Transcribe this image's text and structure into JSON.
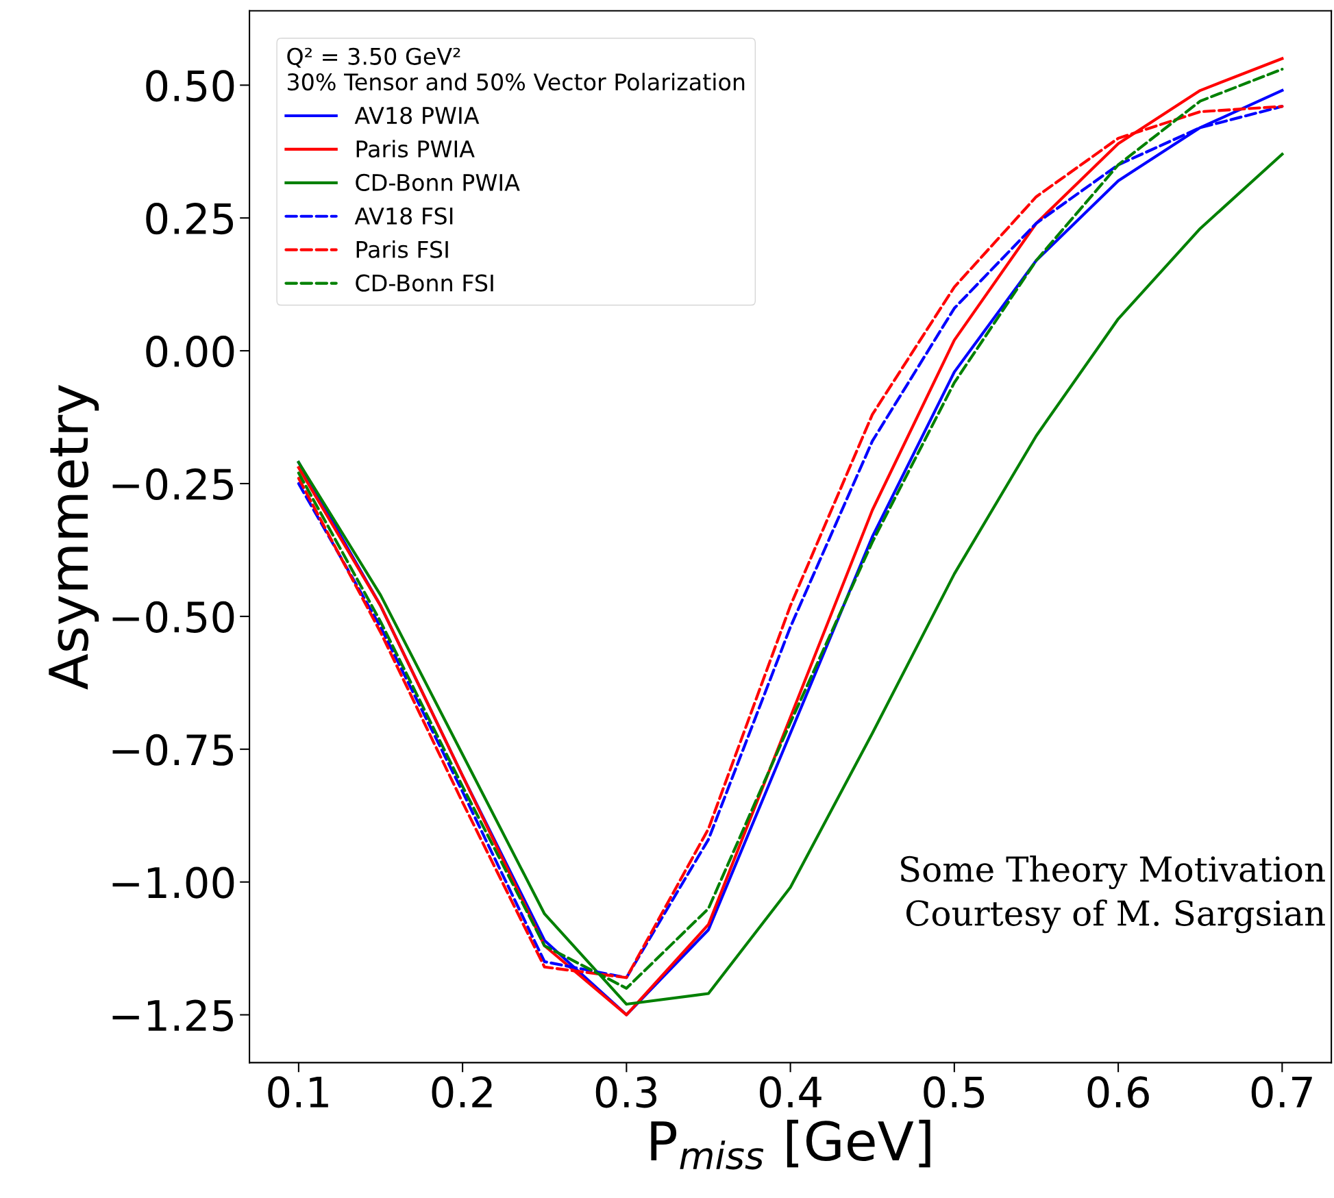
{
  "chart_data": {
    "type": "line",
    "xlabel": "P$_{miss}$ [GeV]",
    "ylabel": "Asymmetry",
    "legend_title": "Q² = 3.50 GeV²\n30% Tensor and 50% Vector Polarization",
    "x": [
      0.1,
      0.15,
      0.2,
      0.25,
      0.3,
      0.35,
      0.4,
      0.45,
      0.5,
      0.55,
      0.6,
      0.65,
      0.7
    ],
    "series": [
      {
        "name": "AV18 PWIA",
        "color": "#0000ff",
        "line_style": "solid",
        "values": [
          -0.21,
          -0.48,
          -0.8,
          -1.11,
          -1.25,
          -1.09,
          -0.72,
          -0.35,
          -0.04,
          0.17,
          0.32,
          0.42,
          0.49
        ]
      },
      {
        "name": "Paris PWIA",
        "color": "#ff0000",
        "line_style": "solid",
        "values": [
          -0.22,
          -0.48,
          -0.8,
          -1.12,
          -1.25,
          -1.08,
          -0.69,
          -0.3,
          0.02,
          0.24,
          0.39,
          0.49,
          0.55
        ]
      },
      {
        "name": "CD-Bonn PWIA",
        "color": "#008000",
        "line_style": "solid",
        "values": [
          -0.21,
          -0.46,
          -0.76,
          -1.06,
          -1.23,
          -1.21,
          -1.01,
          -0.72,
          -0.42,
          -0.16,
          0.06,
          0.23,
          0.37
        ]
      },
      {
        "name": "AV18 FSI",
        "color": "#0000ff",
        "line_style": "dashed",
        "values": [
          -0.25,
          -0.52,
          -0.83,
          -1.15,
          -1.18,
          -0.92,
          -0.52,
          -0.17,
          0.08,
          0.24,
          0.35,
          0.42,
          0.46
        ]
      },
      {
        "name": "Paris FSI",
        "color": "#ff0000",
        "line_style": "dashed",
        "values": [
          -0.24,
          -0.53,
          -0.85,
          -1.16,
          -1.18,
          -0.9,
          -0.48,
          -0.12,
          0.12,
          0.29,
          0.4,
          0.45,
          0.46
        ]
      },
      {
        "name": "CD-Bonn FSI",
        "color": "#008000",
        "line_style": "dashed",
        "values": [
          -0.23,
          -0.51,
          -0.82,
          -1.12,
          -1.2,
          -1.05,
          -0.7,
          -0.36,
          -0.06,
          0.17,
          0.35,
          0.47,
          0.53
        ]
      }
    ],
    "xlim": [
      0.07,
      0.73
    ],
    "xticks": [
      0.1,
      0.2,
      0.3,
      0.4,
      0.5,
      0.6,
      0.7
    ],
    "ylim": [
      -1.34,
      0.64
    ],
    "yticks": [
      {
        "value": -1.25,
        "label": "−1.25"
      },
      {
        "value": -1.0,
        "label": "−1.00"
      },
      {
        "value": -0.75,
        "label": "−0.75"
      },
      {
        "value": -0.5,
        "label": "−0.50"
      },
      {
        "value": -0.25,
        "label": "−0.25"
      },
      {
        "value": 0,
        "label": "0.00"
      },
      {
        "value": 0.25,
        "label": "0.25"
      },
      {
        "value": 0.5,
        "label": "0.50"
      }
    ],
    "grid": false,
    "legend": "top left",
    "marker": "none",
    "annotations": [
      "Some Theory Motivation\nCourtesy of M. Sargsian"
    ]
  }
}
